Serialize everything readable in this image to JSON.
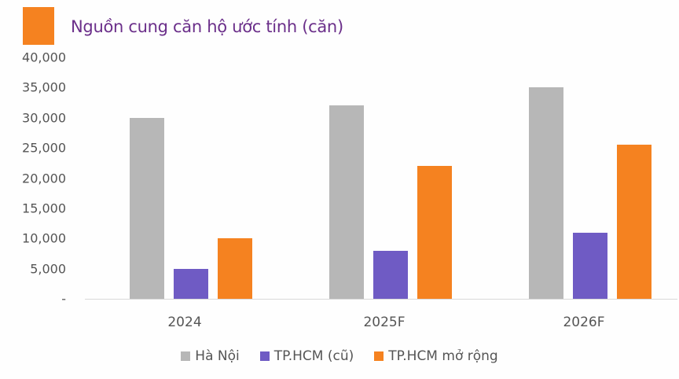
{
  "header": {
    "title": "Nguồn cung căn hộ ước tính (căn)",
    "swatch_color": "#f58220"
  },
  "chart_data": {
    "type": "bar",
    "title": "Nguồn cung căn hộ ước tính (căn)",
    "xlabel": "",
    "ylabel": "",
    "categories": [
      "2024",
      "2025F",
      "2026F"
    ],
    "series": [
      {
        "name": "Hà Nội",
        "color": "#b7b7b7",
        "values": [
          30000,
          32000,
          35000
        ]
      },
      {
        "name": "TP.HCM (cũ)",
        "color": "#6f5bc4",
        "values": [
          5000,
          8000,
          11000
        ]
      },
      {
        "name": "TP.HCM mở rộng",
        "color": "#f58220",
        "values": [
          10000,
          22000,
          25500
        ]
      }
    ],
    "ylim": [
      0,
      40000
    ],
    "yticks": [
      "-",
      "5,000",
      "10,000",
      "15,000",
      "20,000",
      "25,000",
      "30,000",
      "35,000",
      "40,000"
    ],
    "grid": false,
    "legend_position": "bottom"
  }
}
